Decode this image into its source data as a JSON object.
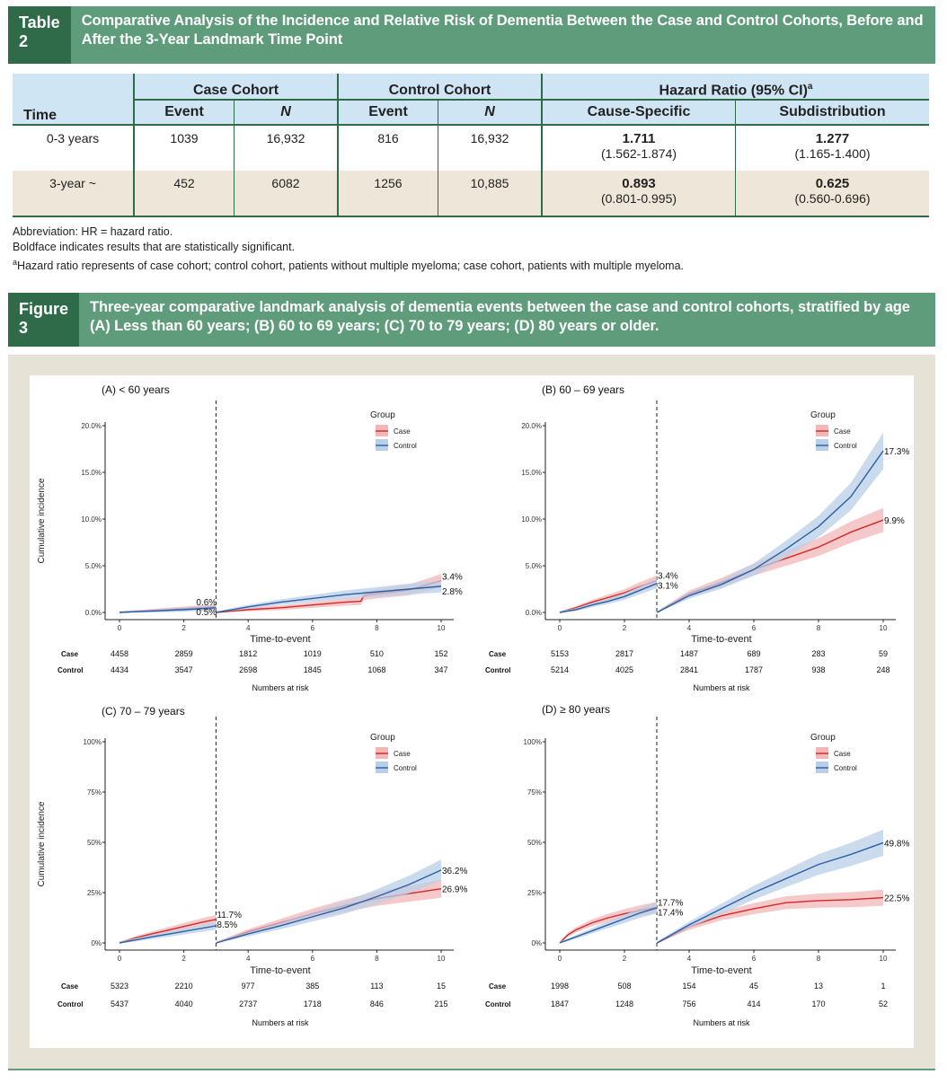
{
  "table2": {
    "label": "Table 2",
    "caption": "Comparative Analysis of the Incidence and Relative Risk of Dementia Between the Case and Control Cohorts, Before and After the 3-Year Landmark Time Point",
    "headers": {
      "time": "Time",
      "case_cohort": "Case Cohort",
      "control_cohort": "Control Cohort",
      "hazard_ratio": "Hazard Ratio (95% CI)",
      "hazard_ratio_sup": "a",
      "event": "Event",
      "n": "N",
      "cause_specific": "Cause-Specific",
      "subdistribution": "Subdistribution"
    },
    "rows": [
      {
        "time": "0-3 years",
        "case_event": "1039",
        "case_n": "16,932",
        "control_event": "816",
        "control_n": "16,932",
        "cs_hr": "1.711",
        "cs_ci": "(1.562-1.874)",
        "sd_hr": "1.277",
        "sd_ci": "(1.165-1.400)"
      },
      {
        "time": "3-year ~",
        "case_event": "452",
        "case_n": "6082",
        "control_event": "1256",
        "control_n": "10,885",
        "cs_hr": "0.893",
        "cs_ci": "(0.801-0.995)",
        "sd_hr": "0.625",
        "sd_ci": "(0.560-0.696)"
      }
    ],
    "notes": [
      "Abbreviation: HR = hazard ratio.",
      "Boldface indicates results that are statistically significant.",
      "Hazard ratio represents of case cohort; control cohort, patients without multiple myeloma; case cohort, patients with multiple myeloma."
    ],
    "note_sup": "a"
  },
  "figure3": {
    "label": "Figure 3",
    "caption": "Three-year comparative landmark analysis of dementia events between the case and control cohorts, stratified by age (A) Less than 60 years; (B) 60 to 69 years; (C) 70 to 79 years; (D) 80 years or older."
  },
  "colors": {
    "case": "#d62728",
    "control": "#2a5fa5",
    "case_band": "#f2b7b7",
    "control_band": "#b9cfe8",
    "caption_bg": "#5f9c7c",
    "caption_label_bg": "#2f6b48",
    "header_bg": "#cfe5f4",
    "alt_row_bg": "#ede6d9"
  },
  "chart_data": [
    {
      "type": "line",
      "title": "(A) < 60 years",
      "xlabel": "Time-to-event",
      "ylabel": "Cumulative incidence",
      "xlim": [
        0,
        10
      ],
      "ylim": [
        0,
        20
      ],
      "x_ticks": [
        "0",
        "2",
        "4",
        "6",
        "8",
        "10"
      ],
      "y_ticks": [
        "0.0%",
        "5.0%",
        "10.0%",
        "15.0%",
        "20.0%"
      ],
      "landmark_x": 3,
      "legend": {
        "title": "Group",
        "position": "top-right",
        "entries": [
          "Case",
          "Control"
        ]
      },
      "series": [
        {
          "name": "Case",
          "points": [
            [
              0,
              0
            ],
            [
              1,
              0.2
            ],
            [
              2,
              0.4
            ],
            [
              3,
              0.6
            ],
            [
              3.01,
              0
            ],
            [
              4,
              0.3
            ],
            [
              5,
              0.5
            ],
            [
              6,
              0.8
            ],
            [
              7,
              1.1
            ],
            [
              7.5,
              1.2
            ],
            [
              7.6,
              1.8
            ],
            [
              8,
              2.0
            ],
            [
              9,
              2.4
            ],
            [
              10,
              3.4
            ]
          ]
        },
        {
          "name": "Control",
          "points": [
            [
              0,
              0
            ],
            [
              1,
              0.15
            ],
            [
              2,
              0.3
            ],
            [
              3,
              0.5
            ],
            [
              3.01,
              0
            ],
            [
              4,
              0.6
            ],
            [
              5,
              1.1
            ],
            [
              6,
              1.5
            ],
            [
              7,
              1.9
            ],
            [
              8,
              2.2
            ],
            [
              9,
              2.5
            ],
            [
              10,
              2.8
            ]
          ]
        }
      ],
      "end_labels": {
        "pre_case": "0.6%",
        "pre_control": "0.5%",
        "post_case": "3.4%",
        "post_control": "2.8%"
      },
      "risk_table": {
        "title": "Numbers at risk",
        "rows": [
          {
            "name": "Case",
            "values": [
              "4458",
              "2859",
              "1812",
              "1019",
              "510",
              "152"
            ]
          },
          {
            "name": "Control",
            "values": [
              "4434",
              "3547",
              "2698",
              "1845",
              "1068",
              "347"
            ]
          }
        ]
      }
    },
    {
      "type": "line",
      "title": "(B) 60 – 69 years",
      "xlabel": "Time-to-event",
      "ylabel": "",
      "xlim": [
        0,
        10
      ],
      "ylim": [
        0,
        20
      ],
      "x_ticks": [
        "0",
        "2",
        "4",
        "6",
        "8",
        "10"
      ],
      "y_ticks": [
        "0.0%",
        "5.0%",
        "10.0%",
        "15.0%",
        "20.0%"
      ],
      "landmark_x": 3,
      "legend": {
        "title": "Group",
        "position": "top-right",
        "entries": [
          "Case",
          "Control"
        ]
      },
      "series": [
        {
          "name": "Case",
          "points": [
            [
              0,
              0
            ],
            [
              0.5,
              0.5
            ],
            [
              1,
              1.1
            ],
            [
              1.5,
              1.6
            ],
            [
              2,
              2.1
            ],
            [
              2.5,
              2.8
            ],
            [
              3,
              3.4
            ],
            [
              3.01,
              0
            ],
            [
              3.5,
              1.0
            ],
            [
              4,
              2.0
            ],
            [
              5,
              3.2
            ],
            [
              6,
              4.6
            ],
            [
              7,
              5.8
            ],
            [
              8,
              7.0
            ],
            [
              9,
              8.6
            ],
            [
              10,
              9.9
            ]
          ]
        },
        {
          "name": "Control",
          "points": [
            [
              0,
              0
            ],
            [
              0.5,
              0.3
            ],
            [
              1,
              0.8
            ],
            [
              1.5,
              1.2
            ],
            [
              2,
              1.7
            ],
            [
              2.5,
              2.4
            ],
            [
              3,
              3.1
            ],
            [
              3.01,
              0
            ],
            [
              3.5,
              0.9
            ],
            [
              4,
              1.8
            ],
            [
              5,
              3.0
            ],
            [
              6,
              4.6
            ],
            [
              7,
              6.8
            ],
            [
              8,
              9.2
            ],
            [
              9,
              12.4
            ],
            [
              10,
              17.3
            ]
          ]
        }
      ],
      "end_labels": {
        "pre_case": "3.4%",
        "pre_control": "3.1%",
        "post_case": "9.9%",
        "post_control": "17.3%"
      },
      "risk_table": {
        "title": "Numbers at risk",
        "rows": [
          {
            "name": "Case",
            "values": [
              "5153",
              "2817",
              "1487",
              "689",
              "283",
              "59"
            ]
          },
          {
            "name": "Control",
            "values": [
              "5214",
              "4025",
              "2841",
              "1787",
              "938",
              "248"
            ]
          }
        ]
      }
    },
    {
      "type": "line",
      "title": "(C) 70 – 79 years",
      "xlabel": "Time-to-event",
      "ylabel": "Cumulative incidence",
      "xlim": [
        0,
        10
      ],
      "ylim": [
        0,
        100
      ],
      "x_ticks": [
        "0",
        "2",
        "4",
        "6",
        "8",
        "10"
      ],
      "y_ticks": [
        "0%",
        "25%",
        "50%",
        "75%",
        "100%"
      ],
      "landmark_x": 3,
      "legend": {
        "title": "Group",
        "position": "top-right",
        "entries": [
          "Case",
          "Control"
        ]
      },
      "series": [
        {
          "name": "Case",
          "points": [
            [
              0,
              0
            ],
            [
              0.5,
              2.5
            ],
            [
              1,
              4.5
            ],
            [
              1.5,
              6.3
            ],
            [
              2,
              8.2
            ],
            [
              2.5,
              10.0
            ],
            [
              3,
              11.7
            ],
            [
              3.01,
              0
            ],
            [
              4,
              5.5
            ],
            [
              5,
              10.0
            ],
            [
              6,
              14.5
            ],
            [
              7,
              18.5
            ],
            [
              8,
              22.0
            ],
            [
              9,
              24.5
            ],
            [
              10,
              26.9
            ]
          ]
        },
        {
          "name": "Control",
          "points": [
            [
              0,
              0
            ],
            [
              0.5,
              1.5
            ],
            [
              1,
              3.0
            ],
            [
              1.5,
              4.3
            ],
            [
              2,
              5.7
            ],
            [
              2.5,
              7.1
            ],
            [
              3,
              8.5
            ],
            [
              3.01,
              0
            ],
            [
              4,
              4.5
            ],
            [
              5,
              8.5
            ],
            [
              6,
              13.0
            ],
            [
              7,
              17.5
            ],
            [
              8,
              23.0
            ],
            [
              9,
              29.0
            ],
            [
              10,
              36.2
            ]
          ]
        }
      ],
      "end_labels": {
        "pre_case": "11.7%",
        "pre_control": "8.5%",
        "post_case": "26.9%",
        "post_control": "36.2%"
      },
      "risk_table": {
        "title": "Numbers at risk",
        "rows": [
          {
            "name": "Case",
            "values": [
              "5323",
              "2210",
              "977",
              "385",
              "113",
              "15"
            ]
          },
          {
            "name": "Control",
            "values": [
              "5437",
              "4040",
              "2737",
              "1718",
              "846",
              "215"
            ]
          }
        ]
      }
    },
    {
      "type": "line",
      "title": "(D) ≥ 80 years",
      "xlabel": "Time-to-event",
      "ylabel": "",
      "xlim": [
        0,
        10
      ],
      "ylim": [
        0,
        100
      ],
      "x_ticks": [
        "0",
        "2",
        "4",
        "6",
        "8",
        "10"
      ],
      "y_ticks": [
        "0%",
        "25%",
        "50%",
        "75%",
        "100%"
      ],
      "landmark_x": 3,
      "legend": {
        "title": "Group",
        "position": "top-right",
        "entries": [
          "Case",
          "Control"
        ]
      },
      "series": [
        {
          "name": "Case",
          "points": [
            [
              0,
              0
            ],
            [
              0.25,
              4.0
            ],
            [
              0.5,
              6.5
            ],
            [
              1,
              10.0
            ],
            [
              1.5,
              12.5
            ],
            [
              2,
              14.5
            ],
            [
              2.5,
              16.2
            ],
            [
              3,
              17.7
            ],
            [
              3.01,
              0
            ],
            [
              4,
              8.0
            ],
            [
              5,
              13.5
            ],
            [
              6,
              17.0
            ],
            [
              7,
              20.0
            ],
            [
              8,
              21.0
            ],
            [
              9,
              21.5
            ],
            [
              10,
              22.5
            ]
          ]
        },
        {
          "name": "Control",
          "points": [
            [
              0,
              0
            ],
            [
              0.25,
              1.5
            ],
            [
              0.5,
              3.0
            ],
            [
              1,
              6.0
            ],
            [
              1.5,
              9.0
            ],
            [
              2,
              12.0
            ],
            [
              2.5,
              15.0
            ],
            [
              3,
              17.4
            ],
            [
              3.01,
              0
            ],
            [
              4,
              9.0
            ],
            [
              5,
              17.0
            ],
            [
              6,
              25.0
            ],
            [
              7,
              32.0
            ],
            [
              8,
              39.0
            ],
            [
              9,
              44.0
            ],
            [
              10,
              49.8
            ]
          ]
        }
      ],
      "end_labels": {
        "pre_case": "17.7%",
        "pre_control": "17.4%",
        "post_case": "22.5%",
        "post_control": "49.8%"
      },
      "risk_table": {
        "title": "Numbers at risk",
        "rows": [
          {
            "name": "Case",
            "values": [
              "1998",
              "508",
              "154",
              "45",
              "13",
              "1"
            ]
          },
          {
            "name": "Control",
            "values": [
              "1847",
              "1248",
              "756",
              "414",
              "170",
              "52"
            ]
          }
        ]
      }
    }
  ]
}
